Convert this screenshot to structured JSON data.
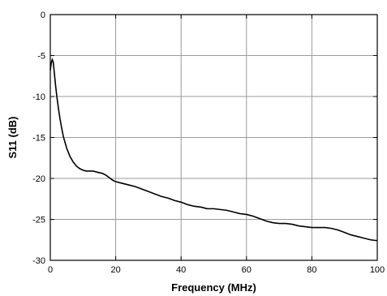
{
  "chart_data": {
    "type": "line",
    "xlabel": "Frequency (MHz)",
    "ylabel": "S11 (dB)",
    "xlim": [
      0,
      100
    ],
    "ylim": [
      -30,
      0
    ],
    "xticks": [
      0,
      20,
      40,
      60,
      80,
      100
    ],
    "yticks": [
      0,
      -5,
      -10,
      -15,
      -20,
      -25,
      -30
    ],
    "grid": true,
    "series": [
      {
        "name": "",
        "x": [
          0,
          0.3,
          0.6,
          0.9,
          1.2,
          1.6,
          2,
          2.5,
          3,
          3.5,
          4,
          5,
          6,
          7,
          8,
          9,
          10,
          11,
          12,
          13,
          14,
          15,
          16,
          17,
          18,
          19,
          20,
          22,
          24,
          26,
          28,
          30,
          32,
          34,
          36,
          38,
          40,
          42,
          44,
          46,
          48,
          50,
          52,
          54,
          56,
          58,
          60,
          62,
          64,
          66,
          68,
          70,
          72,
          74,
          76,
          78,
          80,
          82,
          84,
          86,
          88,
          90,
          92,
          94,
          96,
          98,
          100
        ],
        "y": [
          -6.8,
          -5.9,
          -5.5,
          -5.8,
          -7.0,
          -8.6,
          -10.0,
          -11.5,
          -12.8,
          -13.9,
          -14.9,
          -16.3,
          -17.3,
          -18.0,
          -18.5,
          -18.8,
          -19.0,
          -19.1,
          -19.1,
          -19.1,
          -19.2,
          -19.3,
          -19.4,
          -19.6,
          -19.9,
          -20.2,
          -20.4,
          -20.6,
          -20.8,
          -21.0,
          -21.3,
          -21.6,
          -21.9,
          -22.2,
          -22.4,
          -22.7,
          -22.9,
          -23.2,
          -23.4,
          -23.5,
          -23.7,
          -23.7,
          -23.8,
          -23.9,
          -24.1,
          -24.3,
          -24.4,
          -24.6,
          -24.9,
          -25.2,
          -25.4,
          -25.5,
          -25.5,
          -25.6,
          -25.8,
          -25.9,
          -26.0,
          -26.0,
          -26.0,
          -26.1,
          -26.3,
          -26.6,
          -26.9,
          -27.1,
          -27.3,
          -27.5,
          -27.6
        ]
      }
    ]
  }
}
